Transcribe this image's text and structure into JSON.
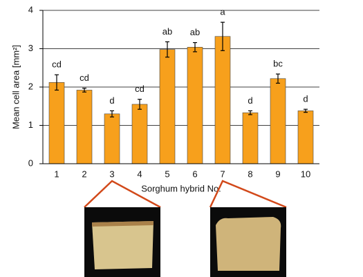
{
  "chart_data": {
    "type": "bar",
    "ylabel": "Mean cell area [mm²]",
    "xlabel": "Sorghum hybrid No.",
    "categories": [
      "1",
      "2",
      "3",
      "4",
      "5",
      "6",
      "7",
      "8",
      "9",
      "10"
    ],
    "values": [
      2.12,
      1.92,
      1.3,
      1.55,
      2.98,
      3.04,
      3.32,
      1.33,
      2.22,
      1.38
    ],
    "errors": [
      0.2,
      0.05,
      0.08,
      0.13,
      0.2,
      0.12,
      0.37,
      0.05,
      0.12,
      0.04
    ],
    "annotations": [
      "cd",
      "cd",
      "d",
      "cd",
      "ab",
      "ab",
      "a",
      "d",
      "bc",
      "d"
    ],
    "color": "#f7a01c",
    "ylim": [
      0,
      4
    ],
    "yticks": [
      0,
      1,
      2,
      3,
      4
    ],
    "grid": true
  }
}
